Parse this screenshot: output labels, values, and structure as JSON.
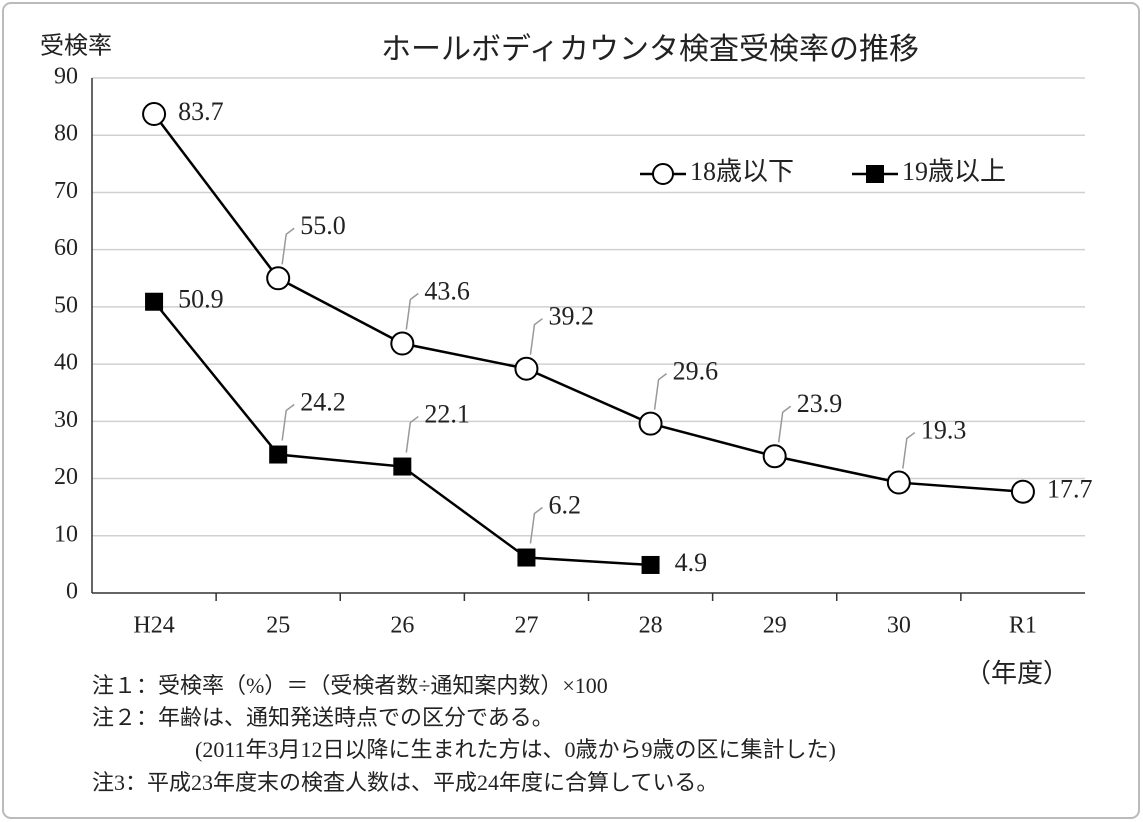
{
  "chart_data": {
    "type": "line",
    "title": "ホールボディカウンタ検査受検率の推移",
    "y_label": "受検率",
    "x_label": "（年度）",
    "categories": [
      "H24",
      "25",
      "26",
      "27",
      "28",
      "29",
      "30",
      "R1"
    ],
    "series": [
      {
        "name": "18歳以下",
        "color": "#000000",
        "marker": "circle",
        "values": [
          83.7,
          55.0,
          43.6,
          39.2,
          29.6,
          23.9,
          19.3,
          17.7
        ],
        "value_labels": [
          "83.7",
          "55.0",
          "43.6",
          "39.2",
          "29.6",
          "23.9",
          "19.3",
          "17.7"
        ]
      },
      {
        "name": "19歳以上",
        "color": "#000000",
        "marker": "square",
        "values": [
          50.9,
          24.2,
          22.1,
          6.2,
          4.9,
          null,
          null,
          null
        ],
        "value_labels": [
          "50.9",
          "24.2",
          "22.1",
          "6.2",
          "4.9",
          null,
          null,
          null
        ]
      }
    ],
    "ylim": [
      0,
      90
    ],
    "yticks": [
      0,
      10,
      20,
      30,
      40,
      50,
      60,
      70,
      80,
      90
    ],
    "grid": true,
    "legend": "upper right",
    "notes": [
      "注１：受検率（%）＝（受検者数÷通知案内数）×100",
      "注２：年齢は、通知発送時点での区分である。",
      "(2011年3月12日以降に生まれた方は、0歳から9歳の区に集計した)",
      "注3：平成23年度末の検査人数は、平成24年度に合算している。"
    ]
  }
}
